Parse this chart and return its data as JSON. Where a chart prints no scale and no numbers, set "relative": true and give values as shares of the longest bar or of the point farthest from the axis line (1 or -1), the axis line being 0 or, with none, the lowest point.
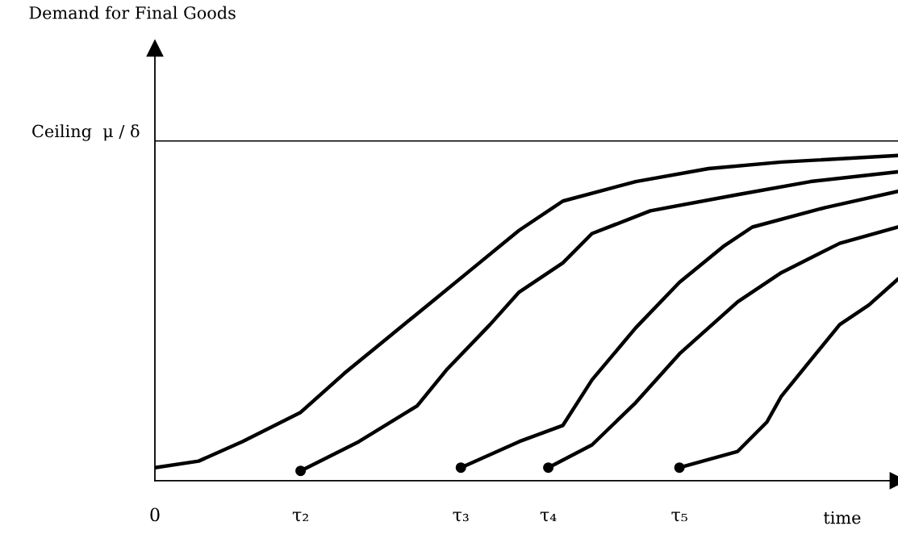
{
  "chart_data": {
    "type": "line",
    "relative": true,
    "annotations": [
      "Demand for Final Goods"
    ],
    "xlabel": "time",
    "categories": [
      "0",
      null,
      null,
      null,
      null,
      null,
      null,
      null,
      null,
      null,
      "τ₂",
      null,
      null,
      null,
      null,
      null,
      null,
      null,
      null,
      null,
      null,
      "τ₃",
      null,
      null,
      null,
      null,
      null,
      "τ₄",
      null,
      null,
      null,
      null,
      null,
      null,
      null,
      null,
      "τ₅",
      null,
      null,
      null,
      null,
      null,
      null,
      null,
      null,
      null,
      null,
      null,
      null,
      null,
      null,
      null
    ],
    "ref_lines": [
      {
        "axis": "y",
        "value": 1.045,
        "label": "Ceiling  μ / δ",
        "color": "#000000"
      }
    ],
    "series": [
      {
        "color": "#000000",
        "values": [
          0.04,
          null,
          null,
          0.06,
          null,
          null,
          0.12,
          null,
          null,
          null,
          0.21,
          null,
          null,
          0.33,
          null,
          null,
          0.44,
          null,
          null,
          0.55,
          null,
          null,
          0.66,
          null,
          null,
          0.77,
          null,
          null,
          0.86,
          null,
          null,
          null,
          null,
          0.92,
          null,
          null,
          null,
          null,
          0.96,
          null,
          null,
          null,
          null,
          0.98,
          null,
          null,
          null,
          null,
          null,
          null,
          null,
          1.0
        ]
      },
      {
        "color": "#000000",
        "values": [
          null,
          null,
          null,
          null,
          null,
          null,
          null,
          null,
          null,
          null,
          0.03,
          null,
          null,
          null,
          0.12,
          null,
          null,
          null,
          0.23,
          null,
          0.34,
          null,
          null,
          0.48,
          null,
          0.58,
          null,
          null,
          0.67,
          null,
          0.76,
          null,
          null,
          null,
          0.83,
          null,
          null,
          null,
          null,
          null,
          0.88,
          null,
          null,
          null,
          null,
          0.92,
          null,
          null,
          null,
          null,
          null,
          0.95
        ]
      },
      {
        "color": "#000000",
        "values": [
          null,
          null,
          null,
          null,
          null,
          null,
          null,
          null,
          null,
          null,
          null,
          null,
          null,
          null,
          null,
          null,
          null,
          null,
          null,
          null,
          null,
          0.04,
          null,
          null,
          null,
          0.12,
          null,
          null,
          0.17,
          null,
          0.31,
          null,
          null,
          0.47,
          null,
          null,
          0.61,
          null,
          null,
          0.72,
          null,
          0.78,
          null,
          null,
          null,
          null,
          0.84,
          null,
          null,
          null,
          null,
          0.89
        ]
      },
      {
        "color": "#000000",
        "values": [
          null,
          null,
          null,
          null,
          null,
          null,
          null,
          null,
          null,
          null,
          null,
          null,
          null,
          null,
          null,
          null,
          null,
          null,
          null,
          null,
          null,
          null,
          null,
          null,
          null,
          null,
          null,
          0.04,
          null,
          null,
          0.11,
          null,
          null,
          0.24,
          null,
          null,
          0.39,
          null,
          null,
          null,
          0.55,
          null,
          null,
          0.64,
          null,
          null,
          null,
          0.73,
          null,
          null,
          null,
          0.78
        ]
      },
      {
        "color": "#000000",
        "values": [
          null,
          null,
          null,
          null,
          null,
          null,
          null,
          null,
          null,
          null,
          null,
          null,
          null,
          null,
          null,
          null,
          null,
          null,
          null,
          null,
          null,
          null,
          null,
          null,
          null,
          null,
          null,
          null,
          null,
          null,
          null,
          null,
          null,
          null,
          null,
          null,
          0.04,
          null,
          null,
          null,
          0.09,
          null,
          0.18,
          0.26,
          null,
          0.37,
          null,
          0.48,
          null,
          0.54,
          null,
          0.62
        ]
      },
      {
        "type": "scatter",
        "color": "#000000",
        "marker": "circle",
        "values": [
          null,
          null,
          null,
          null,
          null,
          null,
          null,
          null,
          null,
          null,
          0.03,
          null,
          null,
          null,
          null,
          null,
          null,
          null,
          null,
          null,
          null,
          0.04,
          null,
          null,
          null,
          null,
          null,
          0.04,
          null,
          null,
          null,
          null,
          null,
          null,
          null,
          null,
          0.04,
          null,
          null,
          null,
          null,
          null,
          null,
          null,
          null,
          null,
          null,
          null,
          null,
          null,
          null,
          null
        ]
      }
    ]
  }
}
